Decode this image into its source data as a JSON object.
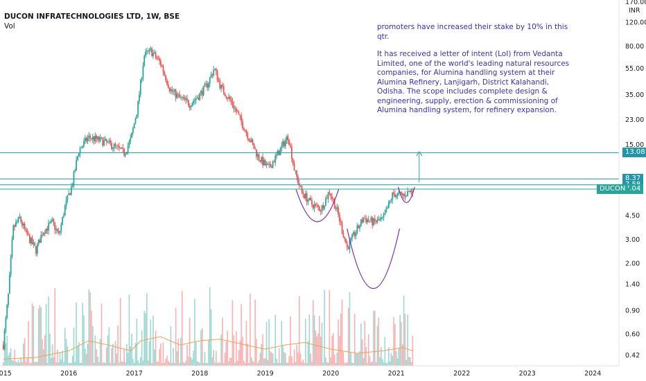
{
  "header": {
    "title": "DUCON INFRATECHNOLOGIES LTD, 1W, BSE",
    "volume_label": "Vol"
  },
  "currency_label": "INR",
  "annotation": {
    "line1": "promoters have increased their stake by 10% in this qtr.",
    "line2": "It has received a letter of intent (LoI) from Vedanta Limited, one of the world's leading natural resources companies, for Alumina handling system at their Alumina Refinery, Lanjigarh, District Kalahandi, Odisha. The scope includes complete design & engineering, supply, erection & commissioning of Alumina handling system, for refinery expansion."
  },
  "colors": {
    "up": "#26a69a",
    "down": "#ef5350",
    "level_line": "#2196a8",
    "current_line": "#26a69a",
    "cup": "#7b2fa8",
    "volume_ma": "#f0a050",
    "arrow": "#26a69a",
    "annotation_text": "#3a2fb3"
  },
  "chart_data": {
    "type": "candlestick",
    "title": "DUCON INFRATECHNOLOGIES LTD, 1W, BSE",
    "scale": "log",
    "ylabel": "INR",
    "xlim": [
      2014.95,
      2024.4
    ],
    "ylim": [
      0.35,
      175
    ],
    "x_ticks": [
      {
        "label": "2015",
        "value": 2015
      },
      {
        "label": "2016",
        "value": 2016
      },
      {
        "label": "2017",
        "value": 2017
      },
      {
        "label": "2018",
        "value": 2018
      },
      {
        "label": "2019",
        "value": 2019
      },
      {
        "label": "2020",
        "value": 2020
      },
      {
        "label": "2021",
        "value": 2021
      },
      {
        "label": "2022",
        "value": 2022
      },
      {
        "label": "2023",
        "value": 2023
      },
      {
        "label": "2024",
        "value": 2024
      }
    ],
    "y_ticks": [
      {
        "label": "170.00",
        "value": 170
      },
      {
        "label": "120.00",
        "value": 120
      },
      {
        "label": "80.00",
        "value": 80
      },
      {
        "label": "55.00",
        "value": 55
      },
      {
        "label": "35.00",
        "value": 35
      },
      {
        "label": "23.00",
        "value": 23
      },
      {
        "label": "15.00",
        "value": 15
      },
      {
        "label": "4.50",
        "value": 4.5
      },
      {
        "label": "3.00",
        "value": 3.0
      },
      {
        "label": "2.00",
        "value": 2.0
      },
      {
        "label": "1.40",
        "value": 1.4
      },
      {
        "label": "0.90",
        "value": 0.9
      },
      {
        "label": "0.60",
        "value": 0.6
      },
      {
        "label": "0.42",
        "value": 0.42
      }
    ],
    "levels": [
      {
        "label": "13.08",
        "value": 13.08,
        "style": "level"
      },
      {
        "label": "8.37",
        "value": 8.37,
        "style": "level"
      },
      {
        "label": "7.58",
        "value": 7.58,
        "style": "level"
      },
      {
        "label": "7.04",
        "value": 7.04,
        "style": "current",
        "ticker": "DUCON"
      }
    ],
    "price_path": [
      [
        2015.0,
        0.5
      ],
      [
        2015.08,
        1.2
      ],
      [
        2015.15,
        3.6
      ],
      [
        2015.25,
        4.3
      ],
      [
        2015.35,
        3.3
      ],
      [
        2015.5,
        2.5
      ],
      [
        2015.6,
        3.4
      ],
      [
        2015.75,
        4.0
      ],
      [
        2015.85,
        3.2
      ],
      [
        2015.95,
        5.4
      ],
      [
        2016.05,
        7.5
      ],
      [
        2016.15,
        13.5
      ],
      [
        2016.3,
        17.0
      ],
      [
        2016.5,
        16.0
      ],
      [
        2016.7,
        14.5
      ],
      [
        2016.85,
        13.0
      ],
      [
        2016.95,
        16.5
      ],
      [
        2017.05,
        28.0
      ],
      [
        2017.15,
        68.0
      ],
      [
        2017.25,
        74.0
      ],
      [
        2017.4,
        60.0
      ],
      [
        2017.55,
        38.0
      ],
      [
        2017.7,
        33.0
      ],
      [
        2017.85,
        30.0
      ],
      [
        2018.0,
        35.0
      ],
      [
        2018.12,
        42.0
      ],
      [
        2018.22,
        55.0
      ],
      [
        2018.32,
        40.0
      ],
      [
        2018.5,
        30.0
      ],
      [
        2018.7,
        19.0
      ],
      [
        2018.9,
        12.0
      ],
      [
        2019.05,
        10.0
      ],
      [
        2019.2,
        13.0
      ],
      [
        2019.35,
        17.5
      ],
      [
        2019.45,
        9.5
      ],
      [
        2019.55,
        6.8
      ],
      [
        2019.7,
        5.5
      ],
      [
        2019.85,
        5.0
      ],
      [
        2019.98,
        6.8
      ],
      [
        2020.1,
        4.8
      ],
      [
        2020.25,
        2.6
      ],
      [
        2020.35,
        3.2
      ],
      [
        2020.5,
        4.3
      ],
      [
        2020.65,
        4.0
      ],
      [
        2020.8,
        4.2
      ],
      [
        2020.95,
        6.5
      ],
      [
        2021.1,
        6.3
      ],
      [
        2021.25,
        7.0
      ]
    ],
    "volume_ma_path": [
      [
        2015.0,
        0.08
      ],
      [
        2015.5,
        0.1
      ],
      [
        2016.0,
        0.18
      ],
      [
        2016.3,
        0.3
      ],
      [
        2016.6,
        0.25
      ],
      [
        2016.95,
        0.18
      ],
      [
        2017.1,
        0.3
      ],
      [
        2017.4,
        0.35
      ],
      [
        2017.7,
        0.25
      ],
      [
        2018.0,
        0.3
      ],
      [
        2018.3,
        0.32
      ],
      [
        2018.7,
        0.25
      ],
      [
        2019.0,
        0.2
      ],
      [
        2019.3,
        0.25
      ],
      [
        2019.6,
        0.28
      ],
      [
        2020.0,
        0.2
      ],
      [
        2020.4,
        0.15
      ],
      [
        2020.8,
        0.18
      ],
      [
        2021.1,
        0.22
      ],
      [
        2021.25,
        0.18
      ]
    ],
    "cup_patterns": [
      {
        "x0": 2019.47,
        "x1": 2020.12,
        "rim": 7.0,
        "bottom": 4.05
      },
      {
        "x0": 2020.25,
        "x1": 2021.05,
        "rim": 3.6,
        "bottom": 1.3
      },
      {
        "x0": 2021.03,
        "x1": 2021.28,
        "rim": 7.3,
        "bottom": 5.6
      }
    ],
    "arrow": {
      "x": 2021.35,
      "from": 7.9,
      "to": 13.3
    },
    "grid": false,
    "legend": "none"
  }
}
